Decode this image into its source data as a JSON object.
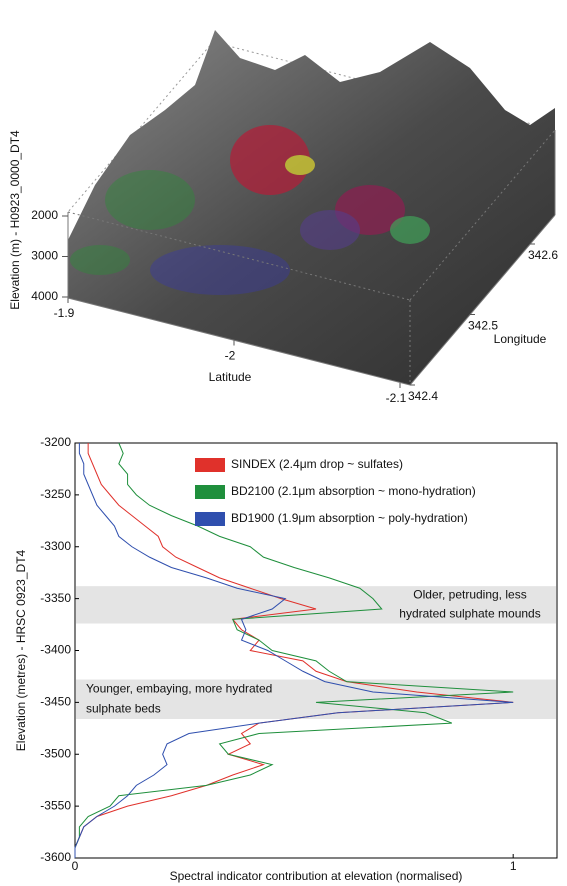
{
  "chart_data": [
    {
      "type": "surface3d",
      "xlabel": "Latitude",
      "ylabel": "Longitude",
      "zlabel": "Elevation (m) - H0923_0000_DT4",
      "xlim": [
        -1.9,
        -2.1
      ],
      "xticks": [
        -1.9,
        -2,
        -2.1
      ],
      "ylim": [
        342.4,
        342.6
      ],
      "yticks": [
        342.4,
        342.5,
        342.6
      ],
      "zlim": [
        2000,
        4000
      ],
      "zticks": [
        2000,
        3000,
        4000
      ]
    },
    {
      "type": "line",
      "xlabel": "Spectral indicator contribution at elevation (normalised)",
      "ylabel": "Elevation (metres) - HRSC 0923_DT4",
      "xlim": [
        0,
        1.1
      ],
      "xticks": [
        0,
        1
      ],
      "ylim": [
        -3600,
        -3200
      ],
      "yticks": [
        -3200,
        -3250,
        -3300,
        -3350,
        -3400,
        -3450,
        -3500,
        -3550,
        -3600
      ],
      "y": [
        -3200,
        -3210,
        -3220,
        -3230,
        -3240,
        -3250,
        -3260,
        -3270,
        -3280,
        -3290,
        -3300,
        -3310,
        -3320,
        -3330,
        -3340,
        -3350,
        -3360,
        -3370,
        -3380,
        -3390,
        -3400,
        -3410,
        -3420,
        -3430,
        -3440,
        -3450,
        -3460,
        -3470,
        -3480,
        -3490,
        -3500,
        -3510,
        -3520,
        -3530,
        -3540,
        -3550,
        -3560,
        -3570,
        -3580,
        -3590,
        -3600
      ],
      "series": [
        {
          "name": "SINDEX (2.4μm drop ~ sulfates)",
          "color": "#e0312b",
          "values": [
            0.03,
            0.03,
            0.04,
            0.05,
            0.06,
            0.08,
            0.1,
            0.13,
            0.16,
            0.19,
            0.2,
            0.23,
            0.28,
            0.33,
            0.4,
            0.47,
            0.55,
            0.36,
            0.38,
            0.42,
            0.4,
            0.52,
            0.55,
            0.62,
            0.78,
            1.0,
            0.6,
            0.42,
            0.38,
            0.4,
            0.35,
            0.43,
            0.36,
            0.3,
            0.22,
            0.12,
            0.05,
            0.02,
            0.01,
            0.0,
            0.0
          ]
        },
        {
          "name": "BD2100 (2.1μm absorption ~ mono-hydration)",
          "color": "#1f8f3c",
          "values": [
            0.1,
            0.11,
            0.1,
            0.12,
            0.12,
            0.14,
            0.17,
            0.22,
            0.28,
            0.33,
            0.4,
            0.43,
            0.5,
            0.58,
            0.65,
            0.68,
            0.7,
            0.36,
            0.37,
            0.42,
            0.45,
            0.55,
            0.58,
            0.62,
            1.0,
            0.55,
            0.8,
            0.86,
            0.42,
            0.33,
            0.35,
            0.45,
            0.4,
            0.3,
            0.1,
            0.08,
            0.03,
            0.01,
            0.01,
            0.0,
            0.0
          ]
        },
        {
          "name": "BD1900 (1.9μm absorption ~ poly-hydration)",
          "color": "#2f4fae",
          "values": [
            0.01,
            0.01,
            0.02,
            0.02,
            0.03,
            0.04,
            0.05,
            0.07,
            0.09,
            0.1,
            0.13,
            0.17,
            0.22,
            0.3,
            0.37,
            0.48,
            0.45,
            0.38,
            0.39,
            0.38,
            0.44,
            0.48,
            0.52,
            0.57,
            0.68,
            1.0,
            0.6,
            0.42,
            0.26,
            0.21,
            0.2,
            0.21,
            0.18,
            0.14,
            0.12,
            0.09,
            0.05,
            0.02,
            0.01,
            0.0,
            0.0
          ]
        }
      ],
      "bands": [
        {
          "range": [
            -3338,
            -3374
          ],
          "label": [
            "Older, petruding, less",
            "hydrated sulphate mounds"
          ]
        },
        {
          "range": [
            -3428,
            -3466
          ],
          "label": [
            "Younger, embaying, more hydrated",
            "sulphate beds"
          ]
        }
      ]
    }
  ]
}
